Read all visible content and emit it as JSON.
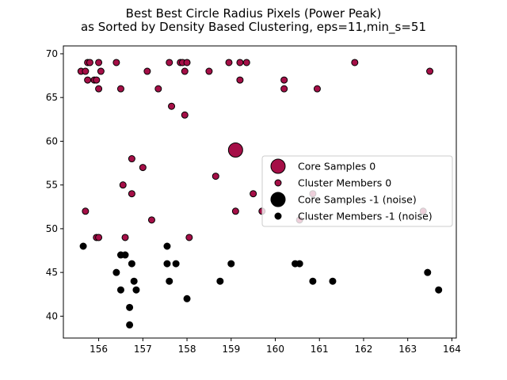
{
  "chart_data": {
    "type": "scatter",
    "title": "Best Best Circle Radius Pixels (Power Peak)",
    "subtitle": "as Sorted by Density Based Clustering, eps=11,min_s=51",
    "xlabel": "",
    "ylabel": "",
    "xlim": [
      155.2,
      164.1
    ],
    "ylim": [
      37.5,
      70.9
    ],
    "xticks": [
      "156",
      "157",
      "158",
      "159",
      "160",
      "161",
      "162",
      "163",
      "164"
    ],
    "yticks": [
      "40",
      "45",
      "50",
      "55",
      "60",
      "65",
      "70"
    ],
    "grid": false,
    "legend_position": "center-right",
    "colors": {
      "cluster_0": "#a50f47",
      "noise": "#000000",
      "edge": "#000000"
    },
    "series": [
      {
        "name": "Core Samples 0",
        "color": "#a50f47",
        "marker": "large-circle",
        "points": [
          [
            159.1,
            59.0
          ]
        ]
      },
      {
        "name": "Cluster Members 0",
        "color": "#a50f47",
        "marker": "small-circle",
        "points": [
          [
            155.6,
            68
          ],
          [
            155.7,
            68
          ],
          [
            155.75,
            69
          ],
          [
            155.8,
            69
          ],
          [
            155.75,
            67
          ],
          [
            155.9,
            67
          ],
          [
            155.95,
            67
          ],
          [
            156.0,
            69
          ],
          [
            156.0,
            66
          ],
          [
            156.05,
            68
          ],
          [
            156.4,
            69
          ],
          [
            156.5,
            66
          ],
          [
            157.1,
            68
          ],
          [
            157.35,
            66
          ],
          [
            157.6,
            69
          ],
          [
            157.65,
            64
          ],
          [
            157.85,
            69
          ],
          [
            157.9,
            69
          ],
          [
            157.95,
            68
          ],
          [
            158.0,
            69
          ],
          [
            157.95,
            63
          ],
          [
            158.5,
            68
          ],
          [
            158.95,
            69
          ],
          [
            159.2,
            67
          ],
          [
            159.2,
            69
          ],
          [
            159.35,
            69
          ],
          [
            160.2,
            67
          ],
          [
            160.2,
            66
          ],
          [
            160.95,
            66
          ],
          [
            161.8,
            69
          ],
          [
            163.5,
            68
          ],
          [
            156.75,
            58
          ],
          [
            157.0,
            57
          ],
          [
            156.55,
            55
          ],
          [
            156.75,
            54
          ],
          [
            155.7,
            52
          ],
          [
            157.2,
            51
          ],
          [
            155.95,
            49
          ],
          [
            156.0,
            49
          ],
          [
            156.6,
            49
          ],
          [
            158.05,
            49
          ],
          [
            158.65,
            56
          ],
          [
            159.5,
            54
          ],
          [
            159.1,
            52
          ],
          [
            159.7,
            52
          ],
          [
            160.85,
            54
          ],
          [
            160.55,
            51
          ],
          [
            163.35,
            52
          ]
        ]
      },
      {
        "name": "Core Samples -1 (noise)",
        "color": "#000000",
        "marker": "large-circle",
        "points": []
      },
      {
        "name": "Cluster Members -1 (noise)",
        "color": "#000000",
        "marker": "small-circle",
        "points": [
          [
            155.65,
            48
          ],
          [
            156.5,
            47
          ],
          [
            156.6,
            47
          ],
          [
            156.75,
            46
          ],
          [
            156.4,
            45
          ],
          [
            156.8,
            44
          ],
          [
            156.5,
            43
          ],
          [
            156.85,
            43
          ],
          [
            156.7,
            41
          ],
          [
            156.7,
            39
          ],
          [
            157.55,
            48
          ],
          [
            157.55,
            46
          ],
          [
            157.75,
            46
          ],
          [
            157.6,
            44
          ],
          [
            158.0,
            42
          ],
          [
            158.75,
            44
          ],
          [
            159.0,
            46
          ],
          [
            160.45,
            46
          ],
          [
            160.55,
            46
          ],
          [
            160.85,
            44
          ],
          [
            161.3,
            44
          ],
          [
            163.45,
            45
          ],
          [
            163.7,
            43
          ]
        ]
      }
    ]
  }
}
